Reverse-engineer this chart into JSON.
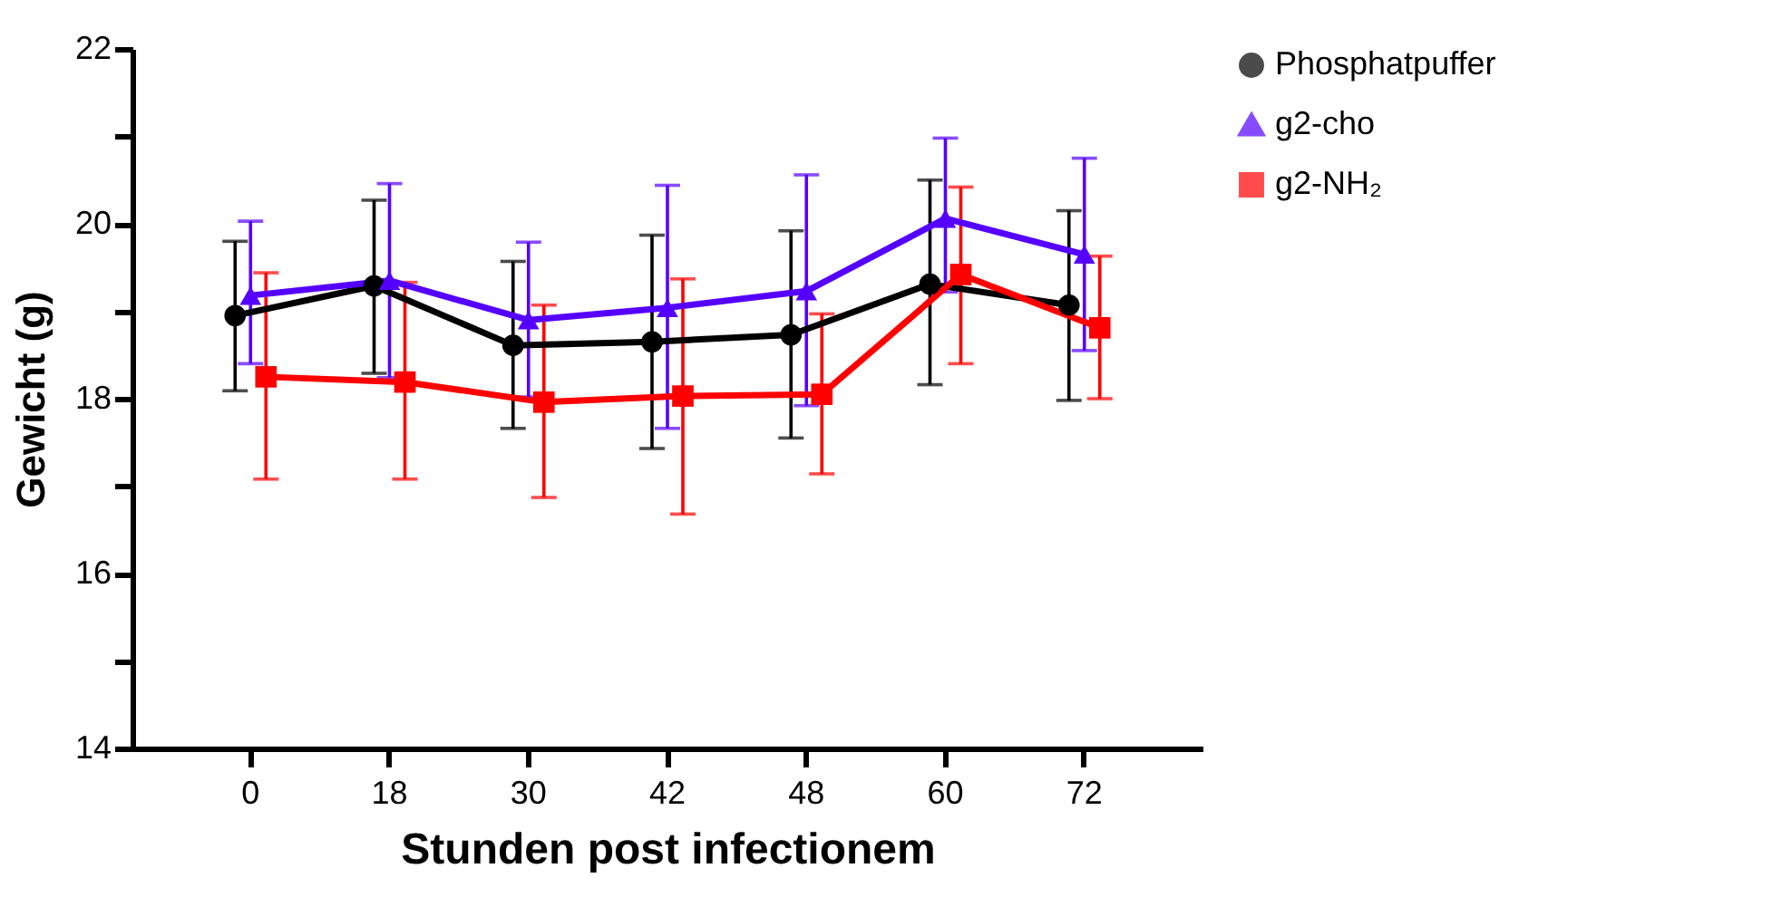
{
  "chart_data": {
    "type": "line",
    "xlabel": "Stunden post infectionem",
    "ylabel": "Gewicht (g)",
    "categories": [
      "0",
      "18",
      "30",
      "42",
      "48",
      "60",
      "72"
    ],
    "ylim": [
      14,
      22
    ],
    "yticks": [
      14,
      {
        "value": 15,
        "label": null
      },
      16,
      {
        "value": 17,
        "label": null
      },
      18,
      {
        "value": 19,
        "label": null
      },
      20,
      {
        "value": 21,
        "label": null
      },
      22
    ],
    "grid": false,
    "legend": "top right",
    "line_style": "solid",
    "series": [
      {
        "name": "Phosphatpuffer",
        "color": "#000000",
        "marker": "circle",
        "values": [
          18.95,
          19.29,
          18.61,
          18.65,
          18.73,
          19.31,
          19.07
        ],
        "errors": [
          [
            18.09,
            19.8
          ],
          [
            18.29,
            20.27
          ],
          [
            17.66,
            19.57
          ],
          [
            17.43,
            19.87
          ],
          [
            17.55,
            19.92
          ],
          [
            18.16,
            20.5
          ],
          [
            17.98,
            20.15
          ]
        ]
      },
      {
        "name": "g2-cho",
        "color": "#5500ff",
        "marker": "triangle",
        "values": [
          19.18,
          19.35,
          18.9,
          19.04,
          19.23,
          20.06,
          19.65
        ],
        "errors": [
          [
            18.4,
            20.03
          ],
          [
            18.24,
            20.46
          ],
          [
            18.02,
            19.79
          ],
          [
            17.66,
            20.44
          ],
          [
            17.92,
            20.56
          ],
          [
            19.22,
            20.98
          ],
          [
            18.55,
            20.75
          ]
        ]
      },
      {
        "name": "g2-NH₂",
        "color": "#ff0000",
        "marker": "square",
        "values": [
          18.25,
          18.19,
          17.96,
          18.03,
          18.05,
          19.42,
          18.81
        ],
        "errors": [
          [
            17.08,
            19.44
          ],
          [
            17.08,
            19.33
          ],
          [
            16.87,
            19.07
          ],
          [
            16.68,
            19.37
          ],
          [
            17.14,
            18.97
          ],
          [
            18.4,
            20.42
          ],
          [
            18.0,
            19.63
          ]
        ]
      }
    ]
  }
}
